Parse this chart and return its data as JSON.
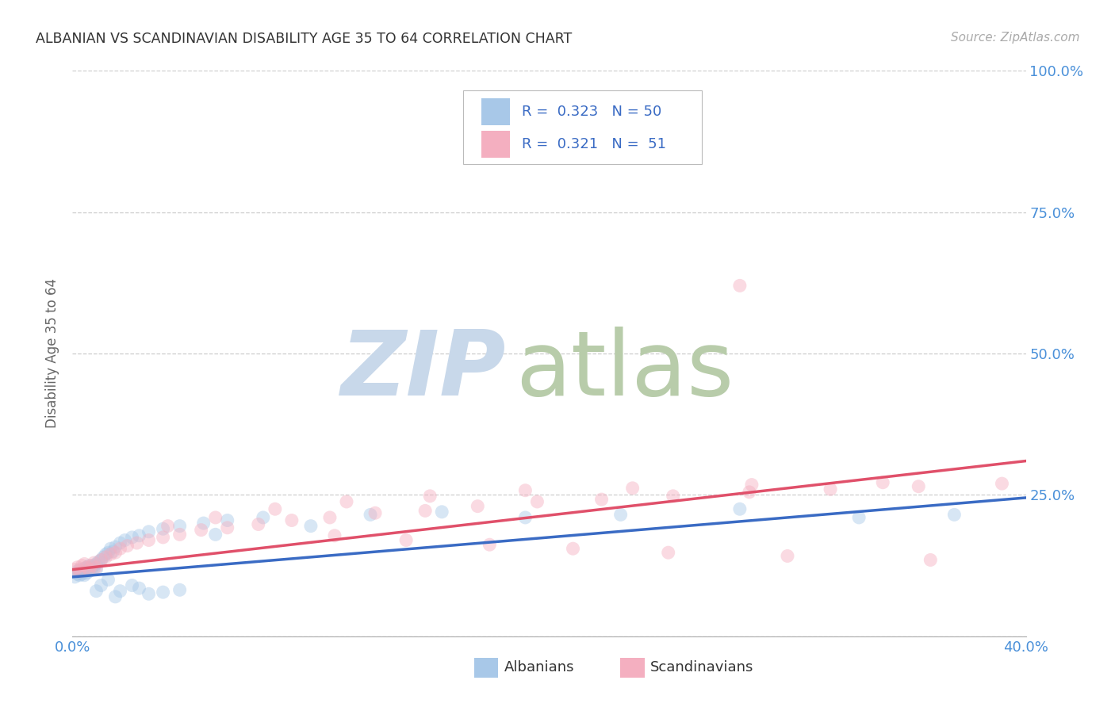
{
  "title": "ALBANIAN VS SCANDINAVIAN DISABILITY AGE 35 TO 64 CORRELATION CHART",
  "source": "Source: ZipAtlas.com",
  "ylabel": "Disability Age 35 to 64",
  "xlim": [
    0.0,
    0.4
  ],
  "ylim": [
    0.0,
    1.0
  ],
  "yticks": [
    0.0,
    0.25,
    0.5,
    0.75,
    1.0
  ],
  "ytick_labels": [
    "",
    "25.0%",
    "50.0%",
    "75.0%",
    "100.0%"
  ],
  "xticks": [
    0.0,
    0.1,
    0.2,
    0.3,
    0.4
  ],
  "xtick_labels": [
    "0.0%",
    "",
    "",
    "",
    "40.0%"
  ],
  "legend_r_albanian": "0.323",
  "legend_n_albanian": "50",
  "legend_r_scandinavian": "0.321",
  "legend_n_scandinavian": "51",
  "color_albanian": "#a8c8e8",
  "color_scandinavian": "#f4afc0",
  "line_color_albanian": "#3a6bc4",
  "line_color_scandinavian": "#e0506a",
  "legend_label_albanian": "Albanians",
  "legend_label_scandinavian": "Scandinavians",
  "watermark_zip_color": "#c8d8ea",
  "watermark_atlas_color": "#b8ccaa",
  "background_color": "#ffffff",
  "grid_color": "#c8c8c8",
  "title_color": "#333333",
  "axis_tick_color": "#4a90d9",
  "marker_size": 150,
  "marker_alpha": 0.45,
  "line_width": 2.5,
  "albanian_x": [
    0.001,
    0.002,
    0.002,
    0.003,
    0.003,
    0.003,
    0.004,
    0.004,
    0.005,
    0.005,
    0.005,
    0.006,
    0.006,
    0.006,
    0.007,
    0.007,
    0.007,
    0.008,
    0.008,
    0.009,
    0.009,
    0.01,
    0.01,
    0.011,
    0.012,
    0.013,
    0.014,
    0.015,
    0.016,
    0.017,
    0.018,
    0.02,
    0.022,
    0.025,
    0.028,
    0.032,
    0.038,
    0.045,
    0.055,
    0.065,
    0.08,
    0.1,
    0.125,
    0.155,
    0.19,
    0.23,
    0.28,
    0.33,
    0.37,
    0.06
  ],
  "albanian_y": [
    0.105,
    0.11,
    0.115,
    0.108,
    0.112,
    0.118,
    0.11,
    0.116,
    0.108,
    0.115,
    0.12,
    0.112,
    0.118,
    0.122,
    0.115,
    0.12,
    0.125,
    0.118,
    0.122,
    0.12,
    0.125,
    0.118,
    0.128,
    0.132,
    0.135,
    0.14,
    0.145,
    0.148,
    0.155,
    0.15,
    0.158,
    0.165,
    0.17,
    0.175,
    0.178,
    0.185,
    0.19,
    0.195,
    0.2,
    0.205,
    0.21,
    0.195,
    0.215,
    0.22,
    0.21,
    0.215,
    0.225,
    0.21,
    0.215,
    0.18
  ],
  "albanian_y_outliers": [
    0.08,
    0.09,
    0.1,
    0.07,
    0.08,
    0.09,
    0.085,
    0.075,
    0.078,
    0.082
  ],
  "albanian_x_outliers": [
    0.01,
    0.012,
    0.015,
    0.018,
    0.02,
    0.025,
    0.028,
    0.032,
    0.038,
    0.045
  ],
  "scandinavian_x": [
    0.001,
    0.002,
    0.003,
    0.004,
    0.005,
    0.006,
    0.007,
    0.008,
    0.009,
    0.01,
    0.012,
    0.014,
    0.016,
    0.018,
    0.02,
    0.023,
    0.027,
    0.032,
    0.038,
    0.045,
    0.054,
    0.065,
    0.078,
    0.092,
    0.108,
    0.127,
    0.148,
    0.17,
    0.195,
    0.222,
    0.252,
    0.284,
    0.318,
    0.355,
    0.39,
    0.04,
    0.06,
    0.085,
    0.115,
    0.15,
    0.19,
    0.235,
    0.285,
    0.34,
    0.3,
    0.25,
    0.21,
    0.175,
    0.14,
    0.11,
    0.36
  ],
  "scandinavian_y": [
    0.118,
    0.122,
    0.115,
    0.125,
    0.128,
    0.122,
    0.118,
    0.125,
    0.13,
    0.122,
    0.135,
    0.14,
    0.145,
    0.148,
    0.155,
    0.16,
    0.165,
    0.17,
    0.175,
    0.18,
    0.188,
    0.192,
    0.198,
    0.205,
    0.21,
    0.218,
    0.222,
    0.23,
    0.238,
    0.242,
    0.248,
    0.255,
    0.26,
    0.265,
    0.27,
    0.195,
    0.21,
    0.225,
    0.238,
    0.248,
    0.258,
    0.262,
    0.268,
    0.272,
    0.142,
    0.148,
    0.155,
    0.162,
    0.17,
    0.178,
    0.135
  ],
  "scandinavian_outlier_x": [
    0.28
  ],
  "scandinavian_outlier_y": [
    0.62
  ]
}
